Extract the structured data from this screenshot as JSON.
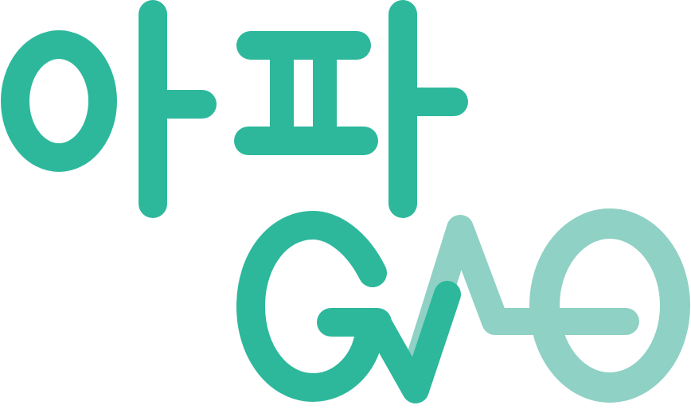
{
  "logo": {
    "wordmark_korean": "아파",
    "wordmark_latin": "GAO",
    "colors": {
      "primary": "#2db89c",
      "light": "#8fd1c4",
      "background": "#ffffff"
    }
  }
}
